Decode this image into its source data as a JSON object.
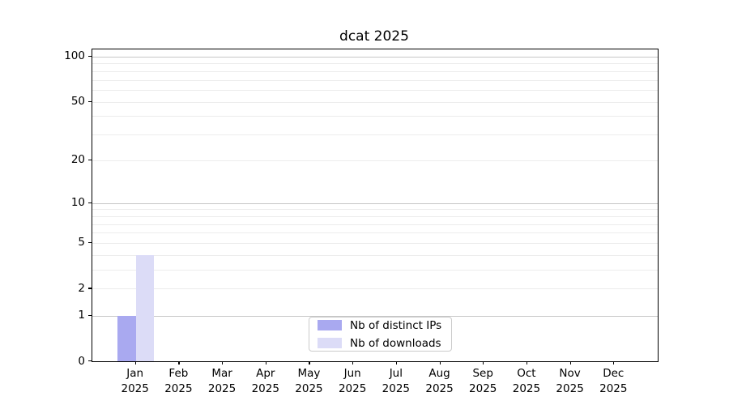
{
  "title": "dcat 2025",
  "chart_data": {
    "type": "bar",
    "title": "dcat 2025",
    "categories": [
      "Jan",
      "Feb",
      "Mar",
      "Apr",
      "May",
      "Jun",
      "Jul",
      "Aug",
      "Sep",
      "Oct",
      "Nov",
      "Dec"
    ],
    "category_year": "2025",
    "series": [
      {
        "name": "Nb of distinct IPs",
        "color": "#a9a9f0",
        "values": [
          1,
          0,
          0,
          0,
          0,
          0,
          0,
          0,
          0,
          0,
          0,
          0
        ]
      },
      {
        "name": "Nb of downloads",
        "color": "#dcdcf7",
        "values": [
          4,
          0,
          0,
          0,
          0,
          0,
          0,
          0,
          0,
          0,
          0,
          0
        ]
      }
    ],
    "yaxis": {
      "scale": "log1p",
      "tick_labels": [
        0,
        1,
        2,
        5,
        10,
        20,
        50,
        100
      ],
      "major_gridlines": [
        1,
        10,
        100
      ],
      "minor_gridlines": [
        2,
        3,
        4,
        5,
        6,
        7,
        8,
        9,
        20,
        30,
        40,
        50,
        60,
        70,
        80,
        90
      ],
      "ylim": [
        0,
        111.7
      ],
      "grid": true
    },
    "xlabel": "",
    "ylabel": "",
    "legend": {
      "location": "inside-bottom-center",
      "entries": [
        "Nb of distinct IPs",
        "Nb of downloads"
      ]
    },
    "colors": {
      "major_grid": "#c6c6c6",
      "minor_grid": "#ececec",
      "spine": "#000000",
      "text": "#000000",
      "legend_border": "#cbcbcb",
      "background": "#ffffff"
    }
  }
}
